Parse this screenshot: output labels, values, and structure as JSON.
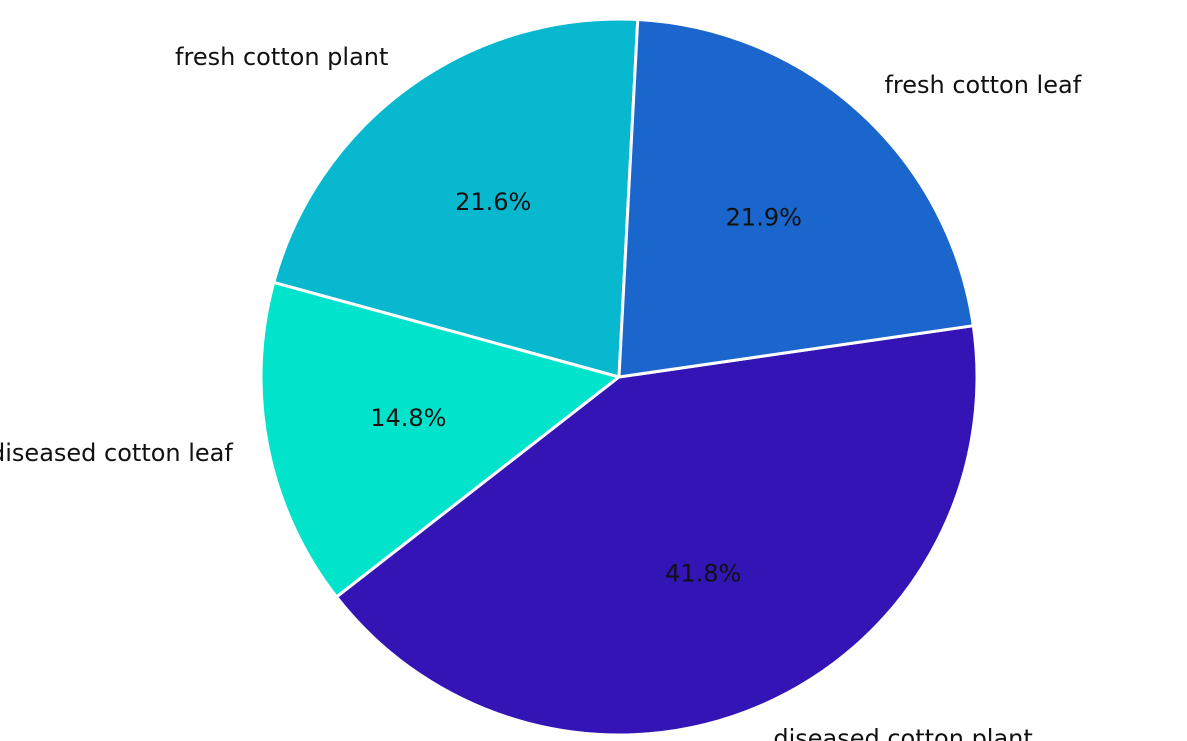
{
  "chart_data": {
    "type": "pie",
    "title": "",
    "slices": [
      {
        "label": "fresh cotton plant",
        "value": 21.6,
        "pct_label": "21.6%",
        "color": "#07B8CF"
      },
      {
        "label": "diseased cotton leaf",
        "value": 14.8,
        "pct_label": "14.8%",
        "color": "#02E3CB"
      },
      {
        "label": "diseased cotton plant",
        "value": 41.8,
        "pct_label": "41.8%",
        "color": "#3414B4"
      },
      {
        "label": "fresh cotton leaf",
        "value": 21.9,
        "pct_label": "21.9%",
        "color": "#1B66CC"
      }
    ],
    "edge_color": "#ffffff"
  }
}
